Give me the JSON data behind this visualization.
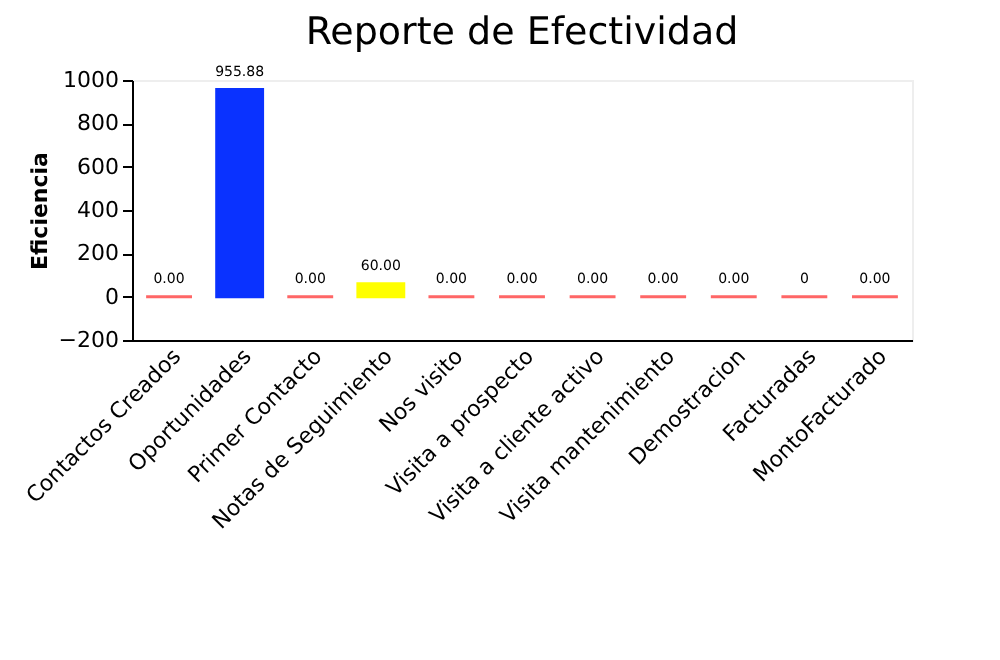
{
  "chart_data": {
    "type": "bar",
    "title": "Reporte de Efectividad",
    "ylabel": "Eficiencia",
    "categories": [
      "Contactos Creados",
      "Oportunidades",
      "Primer Contacto",
      "Notas de Seguimiento",
      "Nos visito",
      "Visita a prospecto",
      "Visita a cliente activo",
      "Visita mantenimiento",
      "Demostracion",
      "Facturadas",
      "MontoFacturado"
    ],
    "values": [
      0,
      955.88,
      0,
      60,
      0,
      0,
      0,
      0,
      0,
      0,
      0
    ],
    "value_labels": [
      "0.00",
      "955.88",
      "0.00",
      "60.00",
      "0.00",
      "0.00",
      "0.00",
      "0.00",
      "0.00",
      "0",
      "0.00"
    ],
    "colors": [
      "#ff6666",
      "#0a32ff",
      "#ff6666",
      "#ffff00",
      "#ff6666",
      "#ff6666",
      "#ff6666",
      "#ff6666",
      "#ff6666",
      "#ff6666",
      "#ff6666"
    ],
    "ylim": [
      -200,
      1000
    ],
    "yticks": [
      -200,
      0,
      200,
      400,
      600,
      800,
      1000
    ],
    "grid": false
  }
}
